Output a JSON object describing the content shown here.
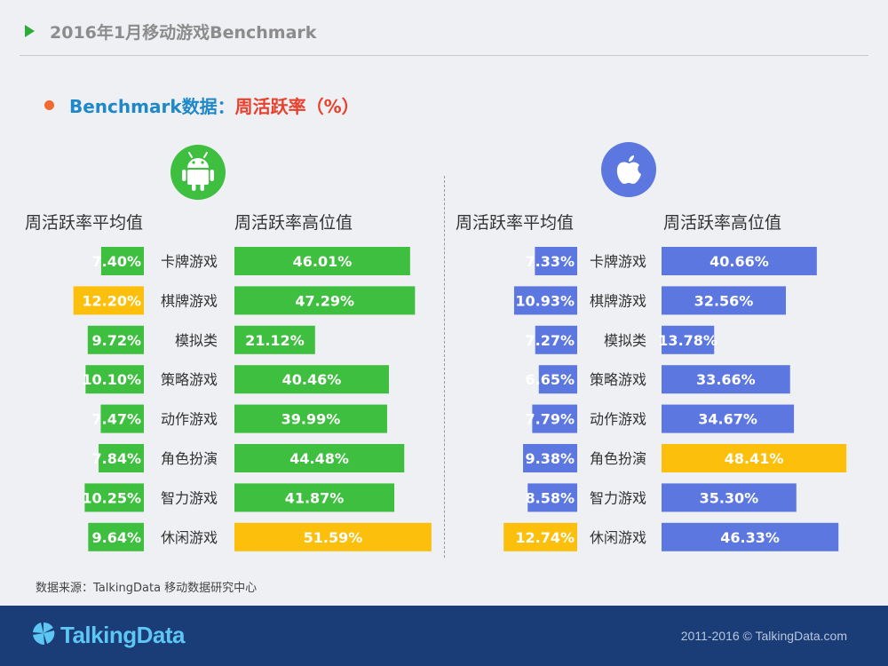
{
  "slide": {
    "title": "2016年1月移动游戏Benchmark",
    "subtitle_part1": "Benchmark数据：",
    "subtitle_part2": "周活跃率（%）"
  },
  "headers": {
    "avg": "周活跃率平均值",
    "high": "周活跃率高位值"
  },
  "colors": {
    "android": "#3fbf3f",
    "ios": "#5c78e0",
    "highlight": "#fcbf0b"
  },
  "icons": {
    "android": "android-icon",
    "ios": "apple-icon"
  },
  "source": "数据来源：TalkingData 移动数据研究中心",
  "footer": {
    "brand": "TalkingData",
    "copyright": "2011-2016 © TalkingData.com"
  },
  "chart_data": [
    {
      "type": "bar",
      "categories": [
        "卡牌游戏",
        "棋牌游戏",
        "模拟类",
        "策略游戏",
        "动作游戏",
        "角色扮演",
        "智力游戏",
        "休闲游戏"
      ],
      "series": [
        {
          "name": "周活跃率平均值",
          "values": [
            7.4,
            12.2,
            9.72,
            10.1,
            7.47,
            7.84,
            10.25,
            9.64
          ],
          "labels": [
            "7.40%",
            "12.20%",
            "9.72%",
            "10.10%",
            "7.47%",
            "7.84%",
            "10.25%",
            "9.64%"
          ]
        },
        {
          "name": "周活跃率高位值",
          "values": [
            46.01,
            47.29,
            21.12,
            40.46,
            39.99,
            44.48,
            41.87,
            51.59
          ],
          "labels": [
            "46.01%",
            "47.29%",
            "21.12%",
            "40.46%",
            "39.99%",
            "44.48%",
            "41.87%",
            "51.59%"
          ]
        }
      ]
    },
    {
      "type": "bar",
      "categories": [
        "卡牌游戏",
        "棋牌游戏",
        "模拟类",
        "策略游戏",
        "动作游戏",
        "角色扮演",
        "智力游戏",
        "休闲游戏"
      ],
      "series": [
        {
          "name": "周活跃率平均值",
          "values": [
            7.33,
            10.93,
            7.27,
            6.65,
            7.79,
            9.38,
            8.58,
            12.74
          ],
          "labels": [
            "7.33%",
            "10.93%",
            "7.27%",
            "6.65%",
            "7.79%",
            "9.38%",
            "8.58%",
            "12.74%"
          ]
        },
        {
          "name": "周活跃率高位值",
          "values": [
            40.66,
            32.56,
            13.78,
            33.66,
            34.67,
            48.41,
            35.3,
            46.33
          ],
          "labels": [
            "40.66%",
            "32.56%",
            "13.78%",
            "33.66%",
            "34.67%",
            "48.41%",
            "35.30%",
            "46.33%"
          ]
        }
      ]
    }
  ]
}
